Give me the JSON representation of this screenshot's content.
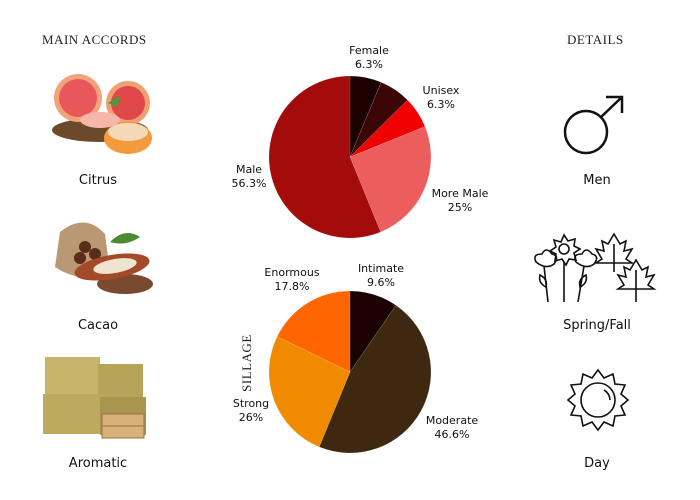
{
  "left": {
    "heading": "MAIN ACCORDS",
    "accords": [
      {
        "label": "Citrus",
        "icon": "grapefruit-image"
      },
      {
        "label": "Cacao",
        "icon": "cacao-image"
      },
      {
        "label": "Aromatic",
        "icon": "hay-bales-image"
      }
    ]
  },
  "right": {
    "heading": "DETAILS",
    "items": [
      {
        "label": "Men",
        "icon": "male-symbol-icon"
      },
      {
        "label": "Spring/Fall",
        "icon": "flowers-leaves-icon"
      },
      {
        "label": "Day",
        "icon": "sun-icon"
      }
    ]
  },
  "chart_data": [
    {
      "type": "pie",
      "slices": [
        {
          "label": "Female",
          "value": 6.3,
          "display": "6.3%",
          "color": "#1c0202"
        },
        {
          "label": "",
          "value": 6.3,
          "display": "",
          "color": "#3c0606"
        },
        {
          "label": "Unisex",
          "value": 6.3,
          "display": "6.3%",
          "color": "#f00000"
        },
        {
          "label": "More Male",
          "value": 25,
          "display": "25%",
          "color": "#ec5d5d"
        },
        {
          "label": "Male",
          "value": 56.3,
          "display": "56.3%",
          "color": "#a40b0b"
        }
      ]
    },
    {
      "type": "pie",
      "title": "SILLAGE",
      "slices": [
        {
          "label": "Intimate",
          "value": 9.6,
          "display": "9.6%",
          "color": "#1c0202"
        },
        {
          "label": "Moderate",
          "value": 46.6,
          "display": "46.6%",
          "color": "#3f2810"
        },
        {
          "label": "Strong",
          "value": 26,
          "display": "26%",
          "color": "#f28a00"
        },
        {
          "label": "Enormous",
          "value": 17.8,
          "display": "17.8%",
          "color": "#ff6600"
        }
      ]
    }
  ]
}
